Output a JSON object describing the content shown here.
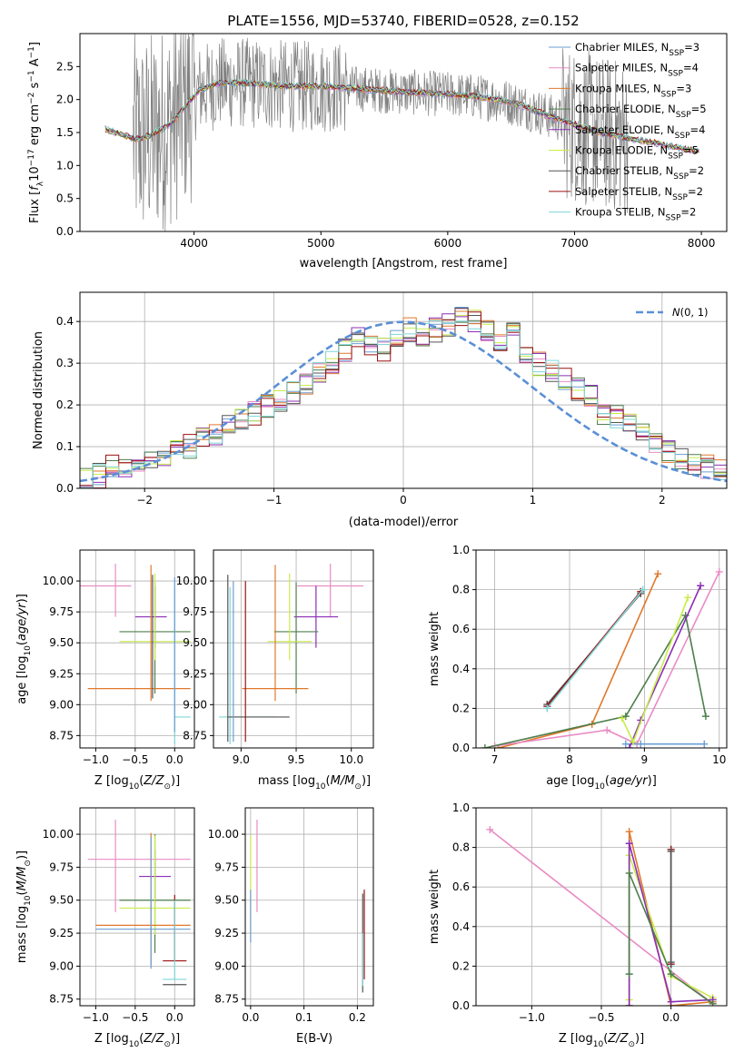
{
  "figure": {
    "title": "PLATE=1556, MJD=53740, FIBERID=0528, z=0.152"
  },
  "colors": {
    "Chabrier MILES": "#6a9fd2",
    "Salpeter MILES": "#e98cc4",
    "Kroupa MILES": "#e0782b",
    "Chabrier ELODIE": "#4d7f4d",
    "Salpeter ELODIE": "#8b2fb5",
    "Kroupa ELODIE": "#c9ec4a",
    "Chabrier STELIB": "#555555",
    "Salpeter STELIB": "#9b1010",
    "Kroupa STELIB": "#7fd6d6",
    "data": "#808080",
    "normal": "#5b8fd6"
  },
  "chart_data": [
    {
      "id": "spectrum",
      "type": "line",
      "title": "PLATE=1556, MJD=53740, FIBERID=0528, z=0.152",
      "xlabel": "wavelength [Angstrom, rest frame]",
      "ylabel": "Flux [f_λ 10^-17 erg cm^-2 s^-1 A^-1]",
      "xlim": [
        3100,
        8200
      ],
      "ylim": [
        0,
        3.0
      ],
      "xticks": [
        4000,
        5000,
        6000,
        7000,
        8000
      ],
      "yticks": [
        0.0,
        0.5,
        1.0,
        1.5,
        2.0,
        2.5
      ],
      "xtick_labels": [
        "4000",
        "5000",
        "6000",
        "7000",
        "8000"
      ],
      "ytick_labels": [
        "0.0",
        "0.5",
        "1.0",
        "1.5",
        "2.0",
        "2.5"
      ],
      "grid": false,
      "legend_position": "upper-right",
      "legend": [
        {
          "label": "Chabrier MILES, N",
          "sub": "SSP",
          "tail": "=3"
        },
        {
          "label": "Salpeter MILES, N",
          "sub": "SSP",
          "tail": "=4"
        },
        {
          "label": "Kroupa MILES, N",
          "sub": "SSP",
          "tail": "=3"
        },
        {
          "label": "Chabrier ELODIE, N",
          "sub": "SSP",
          "tail": "=5"
        },
        {
          "label": "Salpeter ELODIE, N",
          "sub": "SSP",
          "tail": "=4"
        },
        {
          "label": "Kroupa ELODIE, N",
          "sub": "SSP",
          "tail": "=5"
        },
        {
          "label": "Chabrier STELIB, N",
          "sub": "SSP",
          "tail": "=2"
        },
        {
          "label": "Salpeter STELIB, N",
          "sub": "SSP",
          "tail": "=2"
        },
        {
          "label": "Kroupa STELIB, N",
          "sub": "SSP",
          "tail": "=2"
        }
      ],
      "model_continuum": {
        "x": [
          3300,
          3450,
          3550,
          3650,
          3750,
          3850,
          3950,
          4050,
          4200,
          4400,
          4600,
          4800,
          5000,
          5200,
          5400,
          5600,
          5800,
          6000,
          6200,
          6400,
          6600,
          6800,
          7000,
          7200,
          7400,
          7600,
          7800,
          7950
        ],
        "y": [
          1.55,
          1.45,
          1.4,
          1.45,
          1.55,
          1.7,
          1.95,
          2.15,
          2.25,
          2.25,
          2.22,
          2.2,
          2.2,
          2.18,
          2.15,
          2.12,
          2.1,
          2.08,
          2.05,
          2.0,
          1.9,
          1.75,
          1.62,
          1.5,
          1.42,
          1.35,
          1.28,
          1.22
        ]
      },
      "data_band": {
        "x_start": 3520,
        "x_end": 7420,
        "y_max": 3.0
      }
    },
    {
      "id": "residuals",
      "type": "line",
      "xlabel": "(data-model)/error",
      "ylabel": "Normed distribution",
      "xlim": [
        -2.5,
        2.5
      ],
      "ylim": [
        0,
        0.47
      ],
      "xticks": [
        -2,
        -1,
        0,
        1,
        2
      ],
      "yticks": [
        0.0,
        0.1,
        0.2,
        0.3,
        0.4
      ],
      "xtick_labels": [
        "−2",
        "−1",
        "0",
        "1",
        "2"
      ],
      "ytick_labels": [
        "0.0",
        "0.1",
        "0.2",
        "0.3",
        "0.4"
      ],
      "grid": true,
      "legend_position": "upper-right",
      "legend_label": "N(0, 1)",
      "bin_edges_start": -2.5,
      "bin_width": 0.1,
      "histogram_mean": [
        0.02,
        0.03,
        0.05,
        0.05,
        0.06,
        0.07,
        0.08,
        0.09,
        0.1,
        0.12,
        0.13,
        0.15,
        0.16,
        0.18,
        0.2,
        0.21,
        0.23,
        0.25,
        0.28,
        0.3,
        0.33,
        0.36,
        0.34,
        0.33,
        0.36,
        0.38,
        0.37,
        0.38,
        0.39,
        0.42,
        0.4,
        0.38,
        0.36,
        0.37,
        0.33,
        0.3,
        0.28,
        0.26,
        0.24,
        0.22,
        0.18,
        0.17,
        0.15,
        0.13,
        0.11,
        0.09,
        0.07,
        0.06,
        0.05,
        0.04
      ]
    },
    {
      "id": "age-vs-Z",
      "type": "scatter",
      "xlabel": "Z [log10(Z/Z⊙)]",
      "ylabel": "age [log10(age/yr)]",
      "xlim": [
        -1.2,
        0.25
      ],
      "ylim": [
        8.65,
        10.25
      ],
      "xticks": [
        -1.0,
        -0.5,
        0.0
      ],
      "yticks": [
        8.75,
        9.0,
        9.25,
        9.5,
        9.75,
        10.0
      ],
      "xtick_labels": [
        "−1.0",
        "−0.5",
        "0.0"
      ],
      "ytick_labels": [
        "8.75",
        "9.00",
        "9.25",
        "9.50",
        "9.75",
        "10.00"
      ],
      "grid": true,
      "crosses": [
        {
          "model": "Salpeter MILES",
          "x": -0.75,
          "y": 9.96,
          "xerr": [
            0.95,
            0.2
          ],
          "yerr": [
            0.25,
            0.18
          ]
        },
        {
          "model": "Salpeter ELODIE",
          "x": -0.25,
          "y": 9.71,
          "xerr": [
            0.25,
            0.15
          ],
          "yerr": [
            0.25,
            0.25
          ]
        },
        {
          "model": "Chabrier ELODIE",
          "x": -0.25,
          "y": 9.59,
          "xerr": [
            0.45,
            0.45
          ],
          "yerr": [
            0.5,
            0.4
          ]
        },
        {
          "model": "Kroupa ELODIE",
          "x": -0.25,
          "y": 9.51,
          "xerr": [
            0.45,
            0.45
          ],
          "yerr": [
            0.15,
            0.55
          ]
        },
        {
          "model": "Kroupa MILES",
          "x": -0.3,
          "y": 9.13,
          "xerr": [
            0.8,
            0.5
          ],
          "yerr": [
            0.1,
            1.0
          ]
        },
        {
          "model": "Kroupa STELIB",
          "x": 0.0,
          "y": 8.9,
          "xerr": [
            0.0,
            0.2
          ],
          "yerr": [
            0.22,
            1.05
          ]
        },
        {
          "model": "Chabrier MILES",
          "x": 0.0,
          "y": 9.73,
          "xerr": [
            0.0,
            0.0
          ],
          "yerr": [
            0.95,
            0.3
          ]
        },
        {
          "model": "Chabrier STELIB",
          "x": -0.28,
          "y": 9.5,
          "xerr": [
            0.0,
            0.0
          ],
          "yerr": [
            0.45,
            0.55
          ]
        }
      ]
    },
    {
      "id": "age-vs-mass",
      "type": "scatter",
      "xlabel": "mass [log10(M/M⊙)]",
      "ylabel": "",
      "xlim": [
        8.75,
        10.2
      ],
      "ylim": [
        8.65,
        10.25
      ],
      "xticks": [
        9.0,
        9.5,
        10.0
      ],
      "yticks": [
        8.75,
        9.0,
        9.25,
        9.5,
        9.75,
        10.0
      ],
      "xtick_labels": [
        "9.0",
        "9.5",
        "10.0"
      ],
      "ytick_labels": [
        "8.75",
        "9.00",
        "9.25",
        "9.50",
        "9.75",
        "10.00"
      ],
      "grid": true,
      "crosses": [
        {
          "model": "Salpeter MILES",
          "x": 9.81,
          "y": 9.96,
          "xerr": [
            0.3,
            0.3
          ],
          "yerr": [
            0.25,
            0.18
          ]
        },
        {
          "model": "Salpeter ELODIE",
          "x": 9.68,
          "y": 9.71,
          "xerr": [
            0.2,
            0.2
          ],
          "yerr": [
            0.25,
            0.25
          ]
        },
        {
          "model": "Chabrier ELODIE",
          "x": 9.5,
          "y": 9.59,
          "xerr": [
            0.2,
            0.2
          ],
          "yerr": [
            0.5,
            0.4
          ]
        },
        {
          "model": "Kroupa ELODIE",
          "x": 9.44,
          "y": 9.51,
          "xerr": [
            0.2,
            0.2
          ],
          "yerr": [
            0.15,
            0.55
          ]
        },
        {
          "model": "Kroupa MILES",
          "x": 9.31,
          "y": 9.13,
          "xerr": [
            0.3,
            0.3
          ],
          "yerr": [
            0.1,
            1.0
          ]
        },
        {
          "model": "Kroupa STELIB",
          "x": 8.9,
          "y": 8.9,
          "xerr": [
            0.1,
            0.42
          ],
          "yerr": [
            0.22,
            1.05
          ]
        },
        {
          "model": "Chabrier STELIB",
          "x": 8.88,
          "y": 8.9,
          "xerr": [
            0.0,
            0.56
          ],
          "yerr": [
            0.2,
            1.15
          ]
        },
        {
          "model": "Salpeter STELIB",
          "x": 9.04,
          "y": 9.35,
          "xerr": [
            0.0,
            0.0
          ],
          "yerr": [
            0.65,
            0.65
          ]
        },
        {
          "model": "Chabrier MILES",
          "x": 8.93,
          "y": 9.35,
          "xerr": [
            0.0,
            0.0
          ],
          "yerr": [
            0.65,
            0.65
          ]
        }
      ]
    },
    {
      "id": "massweight-vs-age",
      "type": "line",
      "xlabel": "age [log10(age/yr)]",
      "ylabel": "mass weight",
      "xlim": [
        6.75,
        10.1
      ],
      "ylim": [
        0,
        1.0
      ],
      "xticks": [
        7,
        8,
        9,
        10
      ],
      "yticks": [
        0.0,
        0.2,
        0.4,
        0.6,
        0.8,
        1.0
      ],
      "xtick_labels": [
        "7",
        "8",
        "9",
        "10"
      ],
      "ytick_labels": [
        "0.0",
        "0.2",
        "0.4",
        "0.6",
        "0.8",
        "1.0"
      ],
      "grid": true,
      "series": [
        {
          "model": "Chabrier STELIB",
          "x": [
            7.7,
            8.95
          ],
          "y": [
            0.22,
            0.78
          ]
        },
        {
          "model": "Salpeter STELIB",
          "x": [
            7.7,
            8.95
          ],
          "y": [
            0.21,
            0.79
          ]
        },
        {
          "model": "Kroupa STELIB",
          "x": [
            7.7,
            8.98
          ],
          "y": [
            0.2,
            0.8
          ]
        },
        {
          "model": "Kroupa MILES",
          "x": [
            7.05,
            8.3,
            9.18
          ],
          "y": [
            0.0,
            0.12,
            0.88
          ]
        },
        {
          "model": "Salpeter MILES",
          "x": [
            7.0,
            8.5,
            8.9,
            10.0
          ],
          "y": [
            0.01,
            0.09,
            0.02,
            0.89
          ]
        },
        {
          "model": "Chabrier MILES",
          "x": [
            8.75,
            8.95,
            9.8
          ],
          "y": [
            0.02,
            0.02,
            0.02
          ]
        },
        {
          "model": "Chabrier ELODIE",
          "x": [
            6.87,
            8.75,
            9.55,
            9.82
          ],
          "y": [
            0.0,
            0.16,
            0.67,
            0.16
          ]
        },
        {
          "model": "Salpeter ELODIE",
          "x": [
            8.8,
            8.95,
            9.75
          ],
          "y": [
            0.0,
            0.14,
            0.82
          ]
        },
        {
          "model": "Kroupa ELODIE",
          "x": [
            8.7,
            8.85,
            9.58
          ],
          "y": [
            0.15,
            0.03,
            0.76
          ]
        }
      ]
    },
    {
      "id": "mass-vs-Z",
      "type": "scatter",
      "xlabel": "Z [log10(Z/Z⊙)]",
      "ylabel": "mass [log10(M/M⊙)]",
      "xlim": [
        -1.2,
        0.25
      ],
      "ylim": [
        8.7,
        10.2
      ],
      "xticks": [
        -1.0,
        -0.5,
        0.0
      ],
      "yticks": [
        8.75,
        9.0,
        9.25,
        9.5,
        9.75,
        10.0
      ],
      "xtick_labels": [
        "−1.0",
        "−0.5",
        "0.0"
      ],
      "ytick_labels": [
        "8.75",
        "9.00",
        "9.25",
        "9.50",
        "9.75",
        "10.00"
      ],
      "grid": true,
      "crosses": [
        {
          "model": "Salpeter MILES",
          "x": -0.75,
          "y": 9.81,
          "xerr": [
            0.35,
            0.95
          ],
          "yerr": [
            0.4,
            0.3
          ]
        },
        {
          "model": "Salpeter ELODIE",
          "x": -0.25,
          "y": 9.68,
          "xerr": [
            0.2,
            0.2
          ],
          "yerr": [
            0.2,
            0.2
          ]
        },
        {
          "model": "Chabrier ELODIE",
          "x": -0.25,
          "y": 9.5,
          "xerr": [
            0.45,
            0.45
          ],
          "yerr": [
            0.4,
            0.5
          ]
        },
        {
          "model": "Kroupa ELODIE",
          "x": -0.25,
          "y": 9.44,
          "xerr": [
            0.45,
            0.45
          ],
          "yerr": [
            0.2,
            0.55
          ]
        },
        {
          "model": "Kroupa MILES",
          "x": -0.3,
          "y": 9.31,
          "xerr": [
            0.7,
            0.5
          ],
          "yerr": [
            0.3,
            0.7
          ]
        },
        {
          "model": "Chabrier MILES",
          "x": -0.3,
          "y": 9.28,
          "xerr": [
            0.7,
            0.5
          ],
          "yerr": [
            0.3,
            0.7
          ]
        },
        {
          "model": "Salpeter STELIB",
          "x": 0.0,
          "y": 9.04,
          "xerr": [
            0.15,
            0.15
          ],
          "yerr": [
            0.0,
            0.5
          ]
        },
        {
          "model": "Kroupa STELIB",
          "x": 0.0,
          "y": 8.9,
          "xerr": [
            0.15,
            0.15
          ],
          "yerr": [
            0.0,
            0.6
          ]
        },
        {
          "model": "Chabrier STELIB",
          "x": 0.0,
          "y": 8.86,
          "xerr": [
            0.15,
            0.15
          ],
          "yerr": [
            0.0,
            0.0
          ]
        }
      ]
    },
    {
      "id": "mass-vs-EBV",
      "type": "scatter",
      "xlabel": "E(B-V)",
      "ylabel": "",
      "xlim": [
        -0.01,
        0.23
      ],
      "ylim": [
        8.7,
        10.2
      ],
      "xticks": [
        0.0,
        0.1,
        0.2
      ],
      "yticks": [
        8.75,
        9.0,
        9.25,
        9.5,
        9.75,
        10.0
      ],
      "xtick_labels": [
        "0.0",
        "0.1",
        "0.2"
      ],
      "ytick_labels": [
        "8.75",
        "9.00",
        "9.25",
        "9.50",
        "9.75",
        "10.00"
      ],
      "grid": true,
      "crosses": [
        {
          "model": "Kroupa ELODIE",
          "x": 0.0,
          "y": 9.44,
          "xerr": [
            0.0,
            0.0
          ],
          "yerr": [
            0.2,
            0.55
          ]
        },
        {
          "model": "Chabrier MILES",
          "x": 0.0,
          "y": 9.28,
          "xerr": [
            0.0,
            0.0
          ],
          "yerr": [
            0.1,
            0.3
          ]
        },
        {
          "model": "Salpeter MILES",
          "x": 0.012,
          "y": 9.81,
          "xerr": [
            0.0,
            0.0
          ],
          "yerr": [
            0.4,
            0.3
          ]
        },
        {
          "model": "Chabrier STELIB",
          "x": 0.21,
          "y": 9.15,
          "xerr": [
            0.0,
            0.0
          ],
          "yerr": [
            0.35,
            0.4
          ]
        },
        {
          "model": "Salpeter STELIB",
          "x": 0.213,
          "y": 9.25,
          "xerr": [
            0.0,
            0.0
          ],
          "yerr": [
            0.35,
            0.33
          ]
        },
        {
          "model": "Kroupa STELIB",
          "x": 0.21,
          "y": 9.0,
          "xerr": [
            0.0,
            0.0
          ],
          "yerr": [
            0.15,
            0.25
          ]
        }
      ]
    },
    {
      "id": "massweight-vs-Z",
      "type": "line",
      "xlabel": "Z [log10(Z/Z⊙)]",
      "ylabel": "mass weight",
      "xlim": [
        -1.4,
        0.4
      ],
      "ylim": [
        0,
        1.0
      ],
      "xticks": [
        -1.0,
        -0.5,
        0.0
      ],
      "yticks": [
        0.0,
        0.2,
        0.4,
        0.6,
        0.8,
        1.0
      ],
      "xtick_labels": [
        "−1.0",
        "−0.5",
        "0.0"
      ],
      "ytick_labels": [
        "0.0",
        "0.2",
        "0.4",
        "0.6",
        "0.8",
        "1.0"
      ],
      "grid": true,
      "series": [
        {
          "model": "Salpeter MILES",
          "x": [
            -1.3,
            0.3
          ],
          "y": [
            0.89,
            0.01
          ]
        },
        {
          "model": "Kroupa MILES",
          "x": [
            -0.3,
            -0.3,
            0.0,
            0.3
          ],
          "y": [
            0.0,
            0.88,
            0.0,
            0.02
          ]
        },
        {
          "model": "Kroupa ELODIE",
          "x": [
            -0.3,
            -0.3,
            0.0,
            0.3
          ],
          "y": [
            0.03,
            0.76,
            0.15,
            0.04
          ]
        },
        {
          "model": "Salpeter ELODIE",
          "x": [
            -0.3,
            -0.3,
            0.0,
            0.3
          ],
          "y": [
            0.0,
            0.82,
            0.02,
            0.03
          ]
        },
        {
          "model": "Chabrier ELODIE",
          "x": [
            -0.3,
            -0.3,
            0.0,
            0.3
          ],
          "y": [
            0.16,
            0.67,
            0.16,
            0.01
          ]
        },
        {
          "model": "Kroupa STELIB",
          "x": [
            0.0,
            0.0
          ],
          "y": [
            0.2,
            0.79
          ]
        },
        {
          "model": "Salpeter STELIB",
          "x": [
            0.0,
            0.0
          ],
          "y": [
            0.21,
            0.79
          ]
        },
        {
          "model": "Chabrier STELIB",
          "x": [
            0.0,
            0.0
          ],
          "y": [
            0.22,
            0.78
          ]
        }
      ]
    }
  ]
}
